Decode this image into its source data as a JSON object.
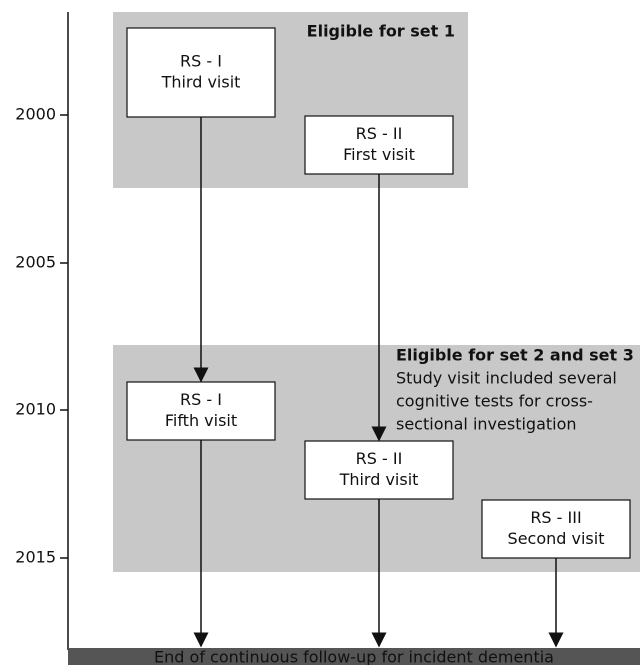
{
  "axis": {
    "ticks": [
      "2000",
      "2005",
      "2010",
      "2015"
    ]
  },
  "regions": [
    {
      "title": "Eligible for set 1",
      "lines": []
    },
    {
      "title": "Eligible for set 2 and set 3",
      "lines": [
        "Study visit included several",
        "cognitive tests for cross-",
        "sectional investigation"
      ]
    }
  ],
  "nodes": [
    {
      "lines": [
        "RS - I",
        "Third visit"
      ]
    },
    {
      "lines": [
        "RS - II",
        "First visit"
      ]
    },
    {
      "lines": [
        "RS - I",
        "Fifth visit"
      ]
    },
    {
      "lines": [
        "RS - II",
        "Third visit"
      ]
    },
    {
      "lines": [
        "RS - III",
        "Second visit"
      ]
    }
  ],
  "footer": "End of continuous follow-up for incident dementia"
}
